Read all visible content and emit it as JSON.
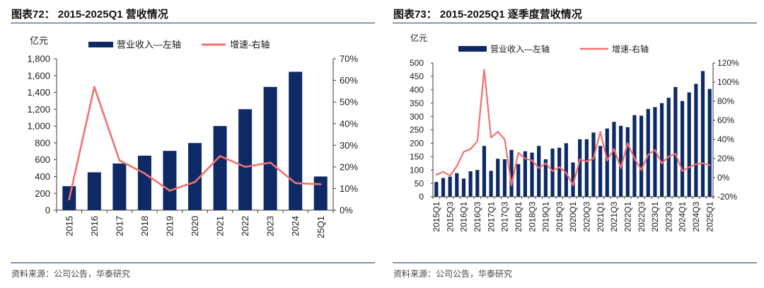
{
  "colors": {
    "rule": "#23386a",
    "axis": "#3a3a3a",
    "text": "#1a1a1a"
  },
  "chart_data": [
    {
      "type": "bar",
      "title": "图表72： 2015-2025Q1 营收情况",
      "source": "资料来源：公司公告，华泰研究",
      "y_unit": "亿元",
      "categories": [
        "2015",
        "2016",
        "2017",
        "2018",
        "2019",
        "2020",
        "2021",
        "2022",
        "2023",
        "2024",
        "25Q1"
      ],
      "series": [
        {
          "name": "营业收入—左轴",
          "type": "bar",
          "axis": "left",
          "color": "#0e2a66",
          "values": [
            285,
            450,
            555,
            648,
            705,
            798,
            1000,
            1200,
            1465,
            1645,
            400
          ]
        },
        {
          "name": "增速-右轴",
          "type": "line",
          "axis": "right",
          "color": "#f4716d",
          "values": [
            5,
            57,
            23,
            17,
            9,
            13,
            25,
            20,
            22,
            12.5,
            12
          ]
        }
      ],
      "y_left": {
        "range": [
          0,
          1800
        ],
        "ticks": [
          "0",
          "200",
          "400",
          "600",
          "800",
          "1,000",
          "1,200",
          "1,400",
          "1,600",
          "1,800"
        ]
      },
      "y_right": {
        "range": [
          0,
          70
        ],
        "ticks": [
          "0%",
          "10%",
          "20%",
          "30%",
          "40%",
          "50%",
          "60%",
          "70%"
        ]
      },
      "legend": "top",
      "grid": false
    },
    {
      "type": "bar",
      "title": "图表73： 2015-2025Q1 逐季度营收情况",
      "source": "资料来源：公司公告，华泰研究",
      "y_unit": "亿元",
      "categories": [
        "2015Q1",
        "",
        "2015Q3",
        "",
        "2016Q1",
        "",
        "2016Q3",
        "",
        "2017Q1",
        "",
        "2017Q3",
        "",
        "2018Q1",
        "",
        "2018Q3",
        "",
        "2019Q1",
        "",
        "2019Q3",
        "",
        "2020Q1",
        "",
        "2020Q3",
        "",
        "2021Q1",
        "",
        "2021Q3",
        "",
        "2022Q1",
        "",
        "2022Q3",
        "",
        "2023Q1",
        "",
        "2023Q3",
        "",
        "2024Q1",
        "",
        "2024Q3",
        "",
        "2025Q1"
      ],
      "series": [
        {
          "name": "营业收入—左轴",
          "type": "bar",
          "axis": "left",
          "color": "#0e2a66",
          "values": [
            55,
            70,
            75,
            88,
            68,
            95,
            100,
            190,
            97,
            142,
            140,
            175,
            122,
            170,
            165,
            190,
            140,
            180,
            183,
            200,
            128,
            215,
            215,
            240,
            190,
            255,
            280,
            265,
            260,
            305,
            303,
            328,
            335,
            350,
            370,
            410,
            358,
            390,
            422,
            470,
            403
          ]
        },
        {
          "name": "增速-右轴",
          "type": "line",
          "axis": "right",
          "color": "#f4716d",
          "values": [
            3,
            6,
            2,
            12,
            27,
            30,
            38,
            113,
            42,
            48,
            40,
            -8,
            26,
            20,
            18,
            10,
            15,
            7,
            11,
            5,
            -8,
            19,
            17,
            20,
            48,
            18,
            30,
            10,
            36,
            20,
            8,
            24,
            29,
            15,
            22,
            25,
            7,
            11,
            14,
            15,
            13
          ]
        }
      ],
      "y_left": {
        "range": [
          0,
          500
        ],
        "ticks": [
          "0",
          "50",
          "100",
          "150",
          "200",
          "250",
          "300",
          "350",
          "400",
          "450",
          "500"
        ]
      },
      "y_right": {
        "range": [
          -20,
          120
        ],
        "ticks": [
          "-20%",
          "0%",
          "20%",
          "40%",
          "60%",
          "80%",
          "100%",
          "120%"
        ]
      },
      "legend": "top",
      "grid": false
    }
  ]
}
